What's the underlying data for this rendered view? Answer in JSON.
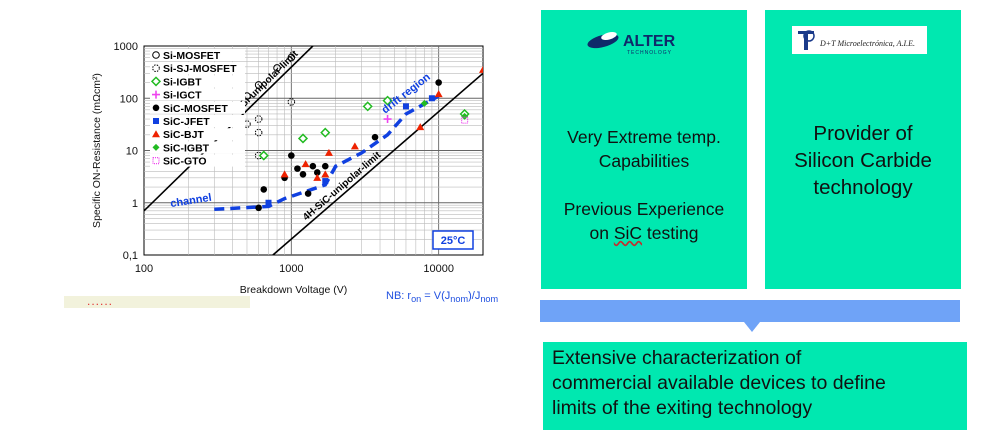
{
  "chart_data": {
    "type": "scatter",
    "x_scale": "log",
    "y_scale": "log",
    "xlim": [
      100,
      20000
    ],
    "ylim": [
      0.1,
      1000
    ],
    "xlabel": "Breakdown Voltage (V)",
    "ylabel": "Specific ON-Resistance (mΩcm²)",
    "x_ticks": [
      "100",
      "1000",
      "10000"
    ],
    "y_ticks": [
      "0,1",
      "1",
      "10",
      "100",
      "1000"
    ],
    "grid": true,
    "legend_position": "top-left",
    "series": [
      {
        "name": "Si-MOSFET",
        "marker": "open-circle",
        "color": "#000000",
        "points": [
          [
            500,
            110
          ],
          [
            600,
            180
          ],
          [
            800,
            380
          ],
          [
            1000,
            600
          ]
        ]
      },
      {
        "name": "Si-SJ-MOSFET",
        "marker": "dashed-circle",
        "color": "#000000",
        "points": [
          [
            500,
            32
          ],
          [
            600,
            40
          ],
          [
            600,
            22
          ],
          [
            600,
            8
          ],
          [
            1000,
            85
          ]
        ]
      },
      {
        "name": "Si-IGBT",
        "marker": "diamond",
        "color": "#22bb22",
        "points": [
          [
            650,
            8
          ],
          [
            1200,
            17
          ],
          [
            1700,
            22
          ],
          [
            3300,
            70
          ],
          [
            4500,
            90
          ],
          [
            15000,
            50
          ]
        ]
      },
      {
        "name": "Si-IGCT",
        "marker": "plus",
        "color": "#ee44ee",
        "points": [
          [
            4500,
            40
          ]
        ]
      },
      {
        "name": "SiC-MOSFET",
        "marker": "filled-circle",
        "color": "#000000",
        "points": [
          [
            600,
            0.8
          ],
          [
            650,
            1.8
          ],
          [
            900,
            3
          ],
          [
            1000,
            8
          ],
          [
            1100,
            4.5
          ],
          [
            1200,
            3.5
          ],
          [
            1300,
            1.5
          ],
          [
            1400,
            5
          ],
          [
            1500,
            3.8
          ],
          [
            1700,
            5
          ],
          [
            3700,
            18
          ],
          [
            10000,
            200
          ]
        ]
      },
      {
        "name": "SiC-JFET",
        "marker": "square",
        "color": "#1040e0",
        "points": [
          [
            700,
            1
          ],
          [
            1700,
            2.6
          ],
          [
            6000,
            70
          ],
          [
            9000,
            100
          ]
        ]
      },
      {
        "name": "SiC-BJT",
        "marker": "triangle",
        "color": "#ee2200",
        "points": [
          [
            900,
            3.5
          ],
          [
            1250,
            5.5
          ],
          [
            1500,
            3
          ],
          [
            1700,
            3.5
          ],
          [
            1800,
            9
          ],
          [
            2700,
            12
          ],
          [
            7500,
            28
          ],
          [
            10000,
            120
          ],
          [
            20000,
            350
          ]
        ]
      },
      {
        "name": "SiC-IGBT",
        "marker": "small-diamond",
        "color": "#22bb22",
        "points": [
          [
            8000,
            80
          ],
          [
            15000,
            45
          ]
        ]
      },
      {
        "name": "SiC-GTO",
        "marker": "dotted-square",
        "color": "#ee44ee",
        "points": [
          [
            15000,
            38
          ]
        ]
      }
    ],
    "limit_lines": [
      {
        "label": "Si-unipolar-limit",
        "style": "solid",
        "points": [
          [
            100,
            0.7
          ],
          [
            1400,
            1000
          ]
        ]
      },
      {
        "label": "4H-SiC-unipolar-limit",
        "style": "solid",
        "points": [
          [
            750,
            0.1
          ],
          [
            20000,
            300
          ]
        ]
      }
    ],
    "trend_line": {
      "style": "dashed",
      "color": "#1040e0",
      "points": [
        [
          300,
          0.75
        ],
        [
          700,
          0.85
        ],
        [
          900,
          1.2
        ],
        [
          1700,
          2.2
        ],
        [
          2000,
          5
        ],
        [
          3000,
          9
        ],
        [
          4500,
          20
        ],
        [
          6000,
          50
        ],
        [
          10000,
          110
        ]
      ]
    },
    "annotations": [
      "channel",
      "drift region",
      "25°C"
    ],
    "footnote": {
      "prefix": "NB: r",
      "sub1": "on",
      "mid": " = V(J",
      "sub2": "nom",
      "mid2": ")/J",
      "sub3": "nom"
    }
  },
  "strip": {
    "text": "......"
  },
  "logos": {
    "alter": "ALTER",
    "alter_sub": "TECHNOLOGY",
    "dt": "D+T Microelectrónica, A.I.E."
  },
  "left_box": {
    "line1": "Very Extreme temp.",
    "line2": "Capabilities",
    "line3": "Previous Experience",
    "line4a": "on ",
    "line4b": "SiC",
    "line4c": " testing"
  },
  "right_box": {
    "line1": "Provider of",
    "line2": "Silicon Carbide",
    "line3": "technology"
  },
  "bottom_box": {
    "line1": "Extensive characterization of",
    "line2": "commercial available devices to define",
    "line3": "limits of the exiting technology"
  },
  "colors": {
    "accent_green": "#00e8b0",
    "arrow_blue": "#6fa3f7"
  }
}
